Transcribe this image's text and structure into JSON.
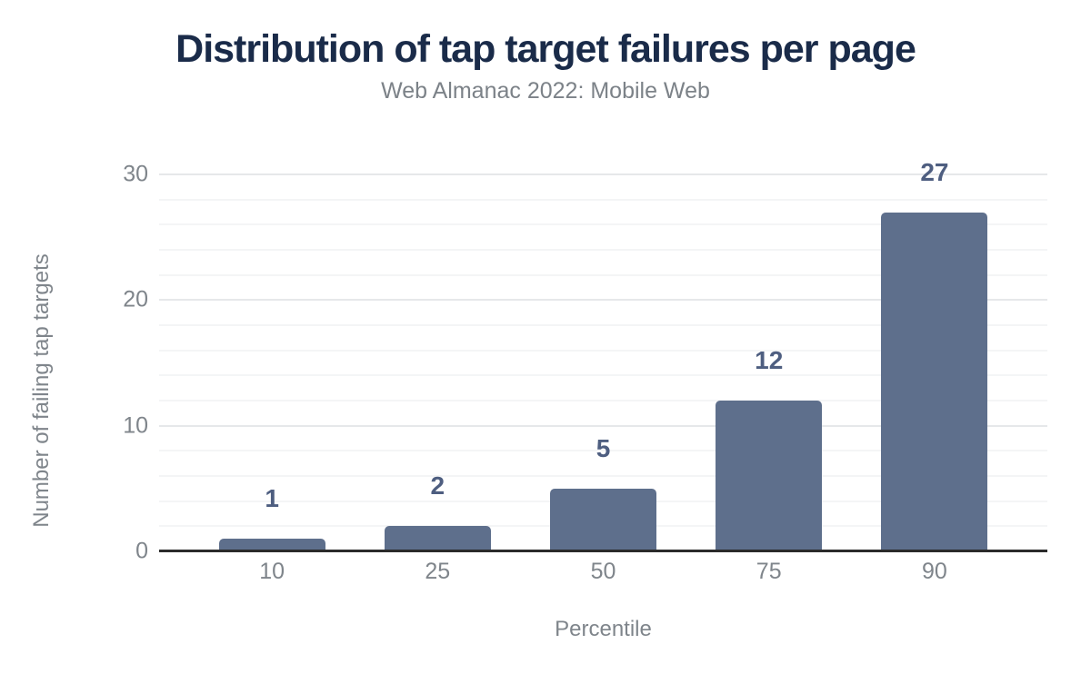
{
  "chart_data": {
    "type": "bar",
    "title": "Distribution of tap target failures per page",
    "subtitle": "Web Almanac 2022: Mobile Web",
    "xlabel": "Percentile",
    "ylabel": "Number of failing tap targets",
    "categories": [
      "10",
      "25",
      "50",
      "75",
      "90"
    ],
    "values": [
      1,
      2,
      5,
      12,
      27
    ],
    "ylim": [
      0,
      30
    ],
    "yticks": [
      0,
      10,
      20,
      30
    ],
    "minor_grid_step": 2,
    "major_grid_step": 10,
    "grid": true,
    "legend": false,
    "data_labels": true,
    "colors": {
      "bar": "#5e6f8c",
      "data_label": "#4e5e80",
      "title": "#1a2b49",
      "subtitle": "#7c8288",
      "axis_label": "#7f858b",
      "tick_label": "#7f858b",
      "major_grid": "#e6e8ea",
      "minor_grid": "#f4f5f6",
      "axis_line": "#2b2b2b"
    }
  }
}
